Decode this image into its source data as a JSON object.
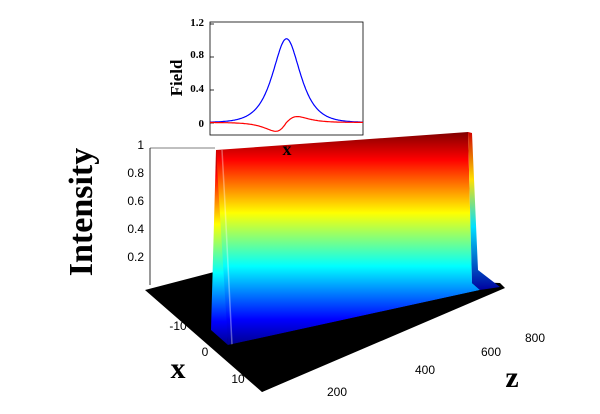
{
  "chart_data": [
    {
      "type": "surface",
      "zlabel": "Intensity",
      "xlabel": "x",
      "ylabel": "z",
      "x_ticks": [
        "-10",
        "0",
        "10"
      ],
      "z_ticks": [
        "200",
        "400",
        "600",
        "800"
      ],
      "intensity_ticks": [
        "0.2",
        "0.4",
        "0.6",
        "0.8",
        "1"
      ],
      "xlim": [
        -17,
        17
      ],
      "zlim": [
        0,
        900
      ],
      "intensity_lim": [
        0,
        1
      ],
      "profile": {
        "peak_x": -4,
        "peak_intensity": 1.0,
        "width": 1.3
      },
      "colormap": "jet"
    },
    {
      "type": "line",
      "xlabel": "x",
      "ylabel": "Field",
      "yticks": [
        "0",
        "0.4",
        "0.8",
        "1.2"
      ],
      "ylim": [
        -0.15,
        1.2
      ],
      "xlim": [
        -10,
        10
      ],
      "series": [
        {
          "color": "#0000ff",
          "peak": 1.0,
          "width": 1.6
        },
        {
          "color": "#ff0000",
          "amplitude": 0.22,
          "width": 1.6
        }
      ]
    }
  ]
}
